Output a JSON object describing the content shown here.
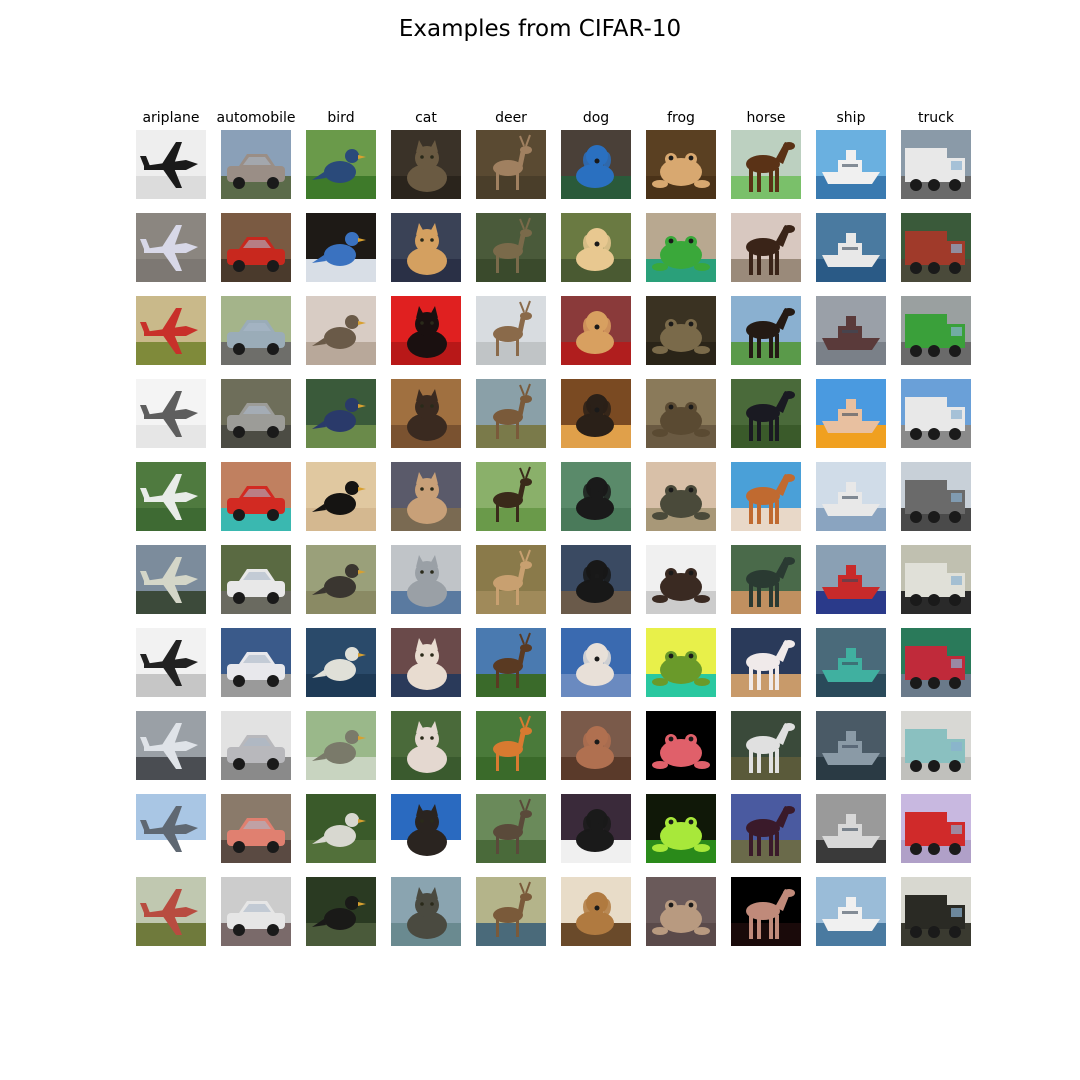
{
  "title": "Examples from CIFAR-10",
  "classes": [
    {
      "label": "ariplane",
      "tiles": [
        {
          "bg": "#eeeeee",
          "ground": "#dcdcdc",
          "fg": "#1a1a1a",
          "shape": "plane"
        },
        {
          "bg": "#8b8680",
          "ground": "#7d7873",
          "fg": "#d8d8e8",
          "shape": "plane"
        },
        {
          "bg": "#c9b98a",
          "ground": "#7f8a3a",
          "fg": "#c8302a",
          "shape": "plane"
        },
        {
          "bg": "#f4f4f4",
          "ground": "#e6e6e6",
          "fg": "#5e5e5e",
          "shape": "plane"
        },
        {
          "bg": "#4f7a3f",
          "ground": "#3e6a33",
          "fg": "#e8ece8",
          "shape": "plane"
        },
        {
          "bg": "#7c8c9c",
          "ground": "#3c4a3a",
          "fg": "#d4d6c8",
          "shape": "plane"
        },
        {
          "bg": "#f2f2f2",
          "ground": "#c6c6c6",
          "fg": "#222222",
          "shape": "plane"
        },
        {
          "bg": "#9aa0a6",
          "ground": "#4a4d52",
          "fg": "#dfe3e8",
          "shape": "plane"
        },
        {
          "bg": "#a9c6e4",
          "ground": "#ffffff",
          "fg": "#5f6872",
          "shape": "plane"
        },
        {
          "bg": "#c0c8b0",
          "ground": "#6f7a3c",
          "fg": "#b84c40",
          "shape": "plane"
        }
      ]
    },
    {
      "label": "automobile",
      "tiles": [
        {
          "bg": "#8aa0b8",
          "ground": "#5b6b4a",
          "fg": "#9a8e86",
          "shape": "car"
        },
        {
          "bg": "#7a5a42",
          "ground": "#4a3a2c",
          "fg": "#c8281e",
          "shape": "car"
        },
        {
          "bg": "#a4b48a",
          "ground": "#6e6e6a",
          "fg": "#9aacb8",
          "shape": "car"
        },
        {
          "bg": "#6e6e5a",
          "ground": "#4c4c44",
          "fg": "#9c9c98",
          "shape": "car"
        },
        {
          "bg": "#c08060",
          "ground": "#3ab8b0",
          "fg": "#d22a22",
          "shape": "car"
        },
        {
          "bg": "#5a6a42",
          "ground": "#6a6a60",
          "fg": "#e8e8e8",
          "shape": "car"
        },
        {
          "bg": "#3a5a8a",
          "ground": "#9a9a9a",
          "fg": "#e8e8ec",
          "shape": "car"
        },
        {
          "bg": "#e2e2e2",
          "ground": "#8a8a8a",
          "fg": "#b8b8bc",
          "shape": "car"
        },
        {
          "bg": "#8a7a6a",
          "ground": "#5a4a42",
          "fg": "#e08070",
          "shape": "car"
        },
        {
          "bg": "#cccccc",
          "ground": "#7a6a6a",
          "fg": "#e6e6e6",
          "shape": "car"
        }
      ]
    },
    {
      "label": "bird",
      "tiles": [
        {
          "bg": "#6a9a4a",
          "ground": "#3e7a2a",
          "fg": "#2a4a7a",
          "shape": "bird"
        },
        {
          "bg": "#1e1a16",
          "ground": "#d8dee6",
          "fg": "#3a72c0",
          "shape": "bird"
        },
        {
          "bg": "#d8ccc4",
          "ground": "#b8a89a",
          "fg": "#6a5a48",
          "shape": "bird"
        },
        {
          "bg": "#3a5a3a",
          "ground": "#6a8a4a",
          "fg": "#2a3a6a",
          "shape": "bird"
        },
        {
          "bg": "#e0c8a0",
          "ground": "#d4b890",
          "fg": "#151412",
          "shape": "bird"
        },
        {
          "bg": "#9aa07a",
          "ground": "#8a8a64",
          "fg": "#3a3630",
          "shape": "bird"
        },
        {
          "bg": "#2a4a6a",
          "ground": "#1e3a56",
          "fg": "#e0e0d8",
          "shape": "bird"
        },
        {
          "bg": "#9ab88a",
          "ground": "#c8d4c0",
          "fg": "#7a7a6a",
          "shape": "bird"
        },
        {
          "bg": "#3a5a2a",
          "ground": "#52703a",
          "fg": "#d8d8d0",
          "shape": "bird"
        },
        {
          "bg": "#2a3a22",
          "ground": "#4a5a3a",
          "fg": "#1a1a18",
          "shape": "bird"
        }
      ]
    },
    {
      "label": "cat",
      "tiles": [
        {
          "bg": "#3a3228",
          "ground": "#2a241c",
          "fg": "#6a5a42",
          "shape": "cat"
        },
        {
          "bg": "#3a4256",
          "ground": "#2a3046",
          "fg": "#d4a060",
          "shape": "cat"
        },
        {
          "bg": "#e02020",
          "ground": "#b81818",
          "fg": "#1a1010",
          "shape": "cat"
        },
        {
          "bg": "#a07040",
          "ground": "#7a5230",
          "fg": "#3a2a20",
          "shape": "cat"
        },
        {
          "bg": "#5a5a6a",
          "ground": "#7a6a52",
          "fg": "#c8a078",
          "shape": "cat"
        },
        {
          "bg": "#c0c4c8",
          "ground": "#5a7aa0",
          "fg": "#9aa0a6",
          "shape": "cat"
        },
        {
          "bg": "#6a4a4a",
          "ground": "#2a3a5a",
          "fg": "#e8dcd0",
          "shape": "cat"
        },
        {
          "bg": "#4a6a3a",
          "ground": "#3a5a2e",
          "fg": "#e4d8d0",
          "shape": "cat"
        },
        {
          "bg": "#2a6ac0",
          "ground": "#ffffff",
          "fg": "#2a2420",
          "shape": "cat"
        },
        {
          "bg": "#8aa4b0",
          "ground": "#6a8a90",
          "fg": "#4a4a40",
          "shape": "cat"
        }
      ]
    },
    {
      "label": "deer",
      "tiles": [
        {
          "bg": "#5a4a32",
          "ground": "#4a3e2a",
          "fg": "#a08060",
          "shape": "deer"
        },
        {
          "bg": "#4a5a3a",
          "ground": "#3a4a2c",
          "fg": "#7a6a4a",
          "shape": "deer"
        },
        {
          "bg": "#d8dce0",
          "ground": "#c0c4c6",
          "fg": "#8a6a4a",
          "shape": "deer"
        },
        {
          "bg": "#8aa0a8",
          "ground": "#7a7a4a",
          "fg": "#7a5a3a",
          "shape": "deer"
        },
        {
          "bg": "#8ab06a",
          "ground": "#6a9a4a",
          "fg": "#3a2a1a",
          "shape": "deer"
        },
        {
          "bg": "#8a7a4a",
          "ground": "#a08a5a",
          "fg": "#c8a070",
          "shape": "deer"
        },
        {
          "bg": "#4a7ab0",
          "ground": "#3a6a2a",
          "fg": "#5a3a22",
          "shape": "deer"
        },
        {
          "bg": "#4a7a3a",
          "ground": "#3a6a2a",
          "fg": "#d87a30",
          "shape": "deer"
        },
        {
          "bg": "#6a8a5a",
          "ground": "#4a6a3a",
          "fg": "#5a4a3a",
          "shape": "deer"
        },
        {
          "bg": "#b4b48a",
          "ground": "#4a6a7a",
          "fg": "#7a5a3a",
          "shape": "deer"
        }
      ]
    },
    {
      "label": "dog",
      "tiles": [
        {
          "bg": "#4a4038",
          "ground": "#2a5a3a",
          "fg": "#2a70c0",
          "shape": "dog"
        },
        {
          "bg": "#6a7a42",
          "ground": "#4a5a32",
          "fg": "#e8c890",
          "shape": "dog"
        },
        {
          "bg": "#8a3a3a",
          "ground": "#b01e1e",
          "fg": "#d8a060",
          "shape": "dog"
        },
        {
          "bg": "#7a4a22",
          "ground": "#e0a04a",
          "fg": "#2a2018",
          "shape": "dog"
        },
        {
          "bg": "#5a8a6a",
          "ground": "#4a7a5a",
          "fg": "#1a1a1a",
          "shape": "dog"
        },
        {
          "bg": "#3a4a62",
          "ground": "#6a5a4a",
          "fg": "#181818",
          "shape": "dog"
        },
        {
          "bg": "#3a6ab0",
          "ground": "#6a8ac0",
          "fg": "#e8e0d8",
          "shape": "dog"
        },
        {
          "bg": "#7a5a4a",
          "ground": "#5a3a2a",
          "fg": "#b07050",
          "shape": "dog"
        },
        {
          "bg": "#3a2a3a",
          "ground": "#f0f0f0",
          "fg": "#1a1a1a",
          "shape": "dog"
        },
        {
          "bg": "#e8dcc8",
          "ground": "#6a4a2a",
          "fg": "#b07a40",
          "shape": "dog"
        }
      ]
    },
    {
      "label": "frog",
      "tiles": [
        {
          "bg": "#5a4022",
          "ground": "#4a3218",
          "fg": "#d8a870",
          "shape": "frog"
        },
        {
          "bg": "#b8a890",
          "ground": "#2aa07a",
          "fg": "#3aa83a",
          "shape": "frog"
        },
        {
          "bg": "#3a3222",
          "ground": "#2a2418",
          "fg": "#7a6a4a",
          "shape": "frog"
        },
        {
          "bg": "#8a7a5a",
          "ground": "#6a5a42",
          "fg": "#5a4a32",
          "shape": "frog"
        },
        {
          "bg": "#d8c0a8",
          "ground": "#a89878",
          "fg": "#4a4a3a",
          "shape": "frog"
        },
        {
          "bg": "#f0f0f0",
          "ground": "#cccccc",
          "fg": "#3a2a22",
          "shape": "frog"
        },
        {
          "bg": "#e8f04a",
          "ground": "#2ac8a0",
          "fg": "#6a9a2a",
          "shape": "frog"
        },
        {
          "bg": "#000000",
          "ground": "#000000",
          "fg": "#e0606a",
          "shape": "frog"
        },
        {
          "bg": "#101808",
          "ground": "#2a8a1a",
          "fg": "#a8e83a",
          "shape": "frog"
        },
        {
          "bg": "#6a5a5a",
          "ground": "#5a4a4a",
          "fg": "#b89a80",
          "shape": "frog"
        }
      ]
    },
    {
      "label": "horse",
      "tiles": [
        {
          "bg": "#bcd0c0",
          "ground": "#7ac06a",
          "fg": "#5a3216",
          "shape": "horse"
        },
        {
          "bg": "#d8c8c0",
          "ground": "#9a8a7a",
          "fg": "#3a2418",
          "shape": "horse"
        },
        {
          "bg": "#8ab0d0",
          "ground": "#5a9a4a",
          "fg": "#241a14",
          "shape": "horse"
        },
        {
          "bg": "#4a6a3a",
          "ground": "#3a5a2a",
          "fg": "#1a1a22",
          "shape": "horse"
        },
        {
          "bg": "#4aa0d8",
          "ground": "#e8d8c8",
          "fg": "#c06a30",
          "shape": "horse"
        },
        {
          "bg": "#4a6a4a",
          "ground": "#c09060",
          "fg": "#2a3a32",
          "shape": "horse"
        },
        {
          "bg": "#2a3a5a",
          "ground": "#c89a6a",
          "fg": "#f0eaea",
          "shape": "horse"
        },
        {
          "bg": "#3a4a3a",
          "ground": "#5a5a3a",
          "fg": "#e0e0e0",
          "shape": "horse"
        },
        {
          "bg": "#4a5aa0",
          "ground": "#6a6a4a",
          "fg": "#3a1a2a",
          "shape": "horse"
        },
        {
          "bg": "#000000",
          "ground": "#1a0a0a",
          "fg": "#c08a7a",
          "shape": "horse"
        }
      ]
    },
    {
      "label": "ship",
      "tiles": [
        {
          "bg": "#6ab0e0",
          "ground": "#3a7ab0",
          "fg": "#f0f0f0",
          "shape": "ship"
        },
        {
          "bg": "#4a7aa0",
          "ground": "#2a5a86",
          "fg": "#e8e8e8",
          "shape": "ship"
        },
        {
          "bg": "#9aa0a8",
          "ground": "#7a8088",
          "fg": "#5a3a3a",
          "shape": "ship"
        },
        {
          "bg": "#4a9ae0",
          "ground": "#f0a020",
          "fg": "#e8c0a0",
          "shape": "ship"
        },
        {
          "bg": "#d0dce8",
          "ground": "#8aa4c0",
          "fg": "#e8e8e8",
          "shape": "ship"
        },
        {
          "bg": "#8aa0b4",
          "ground": "#2a3a8a",
          "fg": "#c82a2a",
          "shape": "ship"
        },
        {
          "bg": "#4a6a7a",
          "ground": "#2a4a5a",
          "fg": "#40b0a0",
          "shape": "ship"
        },
        {
          "bg": "#4a5a66",
          "ground": "#2a3a44",
          "fg": "#8a9aa6",
          "shape": "ship"
        },
        {
          "bg": "#9a9a9a",
          "ground": "#3a3a3a",
          "fg": "#d8d8d8",
          "shape": "ship"
        },
        {
          "bg": "#9abcd8",
          "ground": "#4a7aa0",
          "fg": "#f0f0f0",
          "shape": "ship"
        }
      ]
    },
    {
      "label": "truck",
      "tiles": [
        {
          "bg": "#8a9aa8",
          "ground": "#6a6a6a",
          "fg": "#e8e8e8",
          "shape": "truck"
        },
        {
          "bg": "#3a5a3a",
          "ground": "#4a4a3a",
          "fg": "#a03a2a",
          "shape": "truck"
        },
        {
          "bg": "#9aa0a0",
          "ground": "#6a6a6a",
          "fg": "#3aa03a",
          "shape": "truck"
        },
        {
          "bg": "#6aa0d8",
          "ground": "#8a8a8a",
          "fg": "#e8e8e8",
          "shape": "truck"
        },
        {
          "bg": "#c8d0d8",
          "ground": "#4a4a4a",
          "fg": "#6a6a6a",
          "shape": "truck"
        },
        {
          "bg": "#c0c0b0",
          "ground": "#2a2a2a",
          "fg": "#e0e0d8",
          "shape": "truck"
        },
        {
          "bg": "#2a7a5a",
          "ground": "#6a7a8a",
          "fg": "#c02a3a",
          "shape": "truck"
        },
        {
          "bg": "#d8d8d4",
          "ground": "#c0c0bc",
          "fg": "#8ac0c0",
          "shape": "truck"
        },
        {
          "bg": "#c8b8e0",
          "ground": "#b0a0c8",
          "fg": "#d02a2a",
          "shape": "truck"
        },
        {
          "bg": "#d8d8d0",
          "ground": "#3a3a30",
          "fg": "#2a2a24",
          "shape": "truck"
        }
      ]
    }
  ]
}
